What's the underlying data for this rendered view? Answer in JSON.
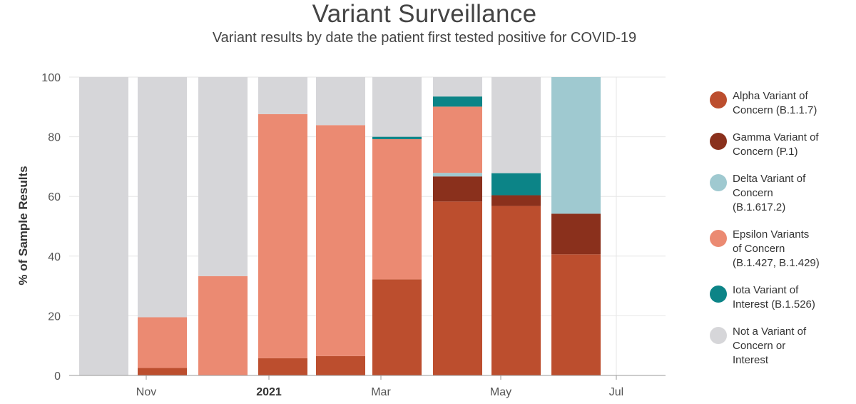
{
  "chart_data": {
    "type": "bar",
    "stacked": true,
    "title": "Variant Surveillance",
    "subtitle": "Variant results by date the patient first tested positive for COVID-19",
    "ylabel": "% of Sample Results",
    "ylim": [
      0,
      100
    ],
    "yticks": [
      "0",
      "20",
      "40",
      "60",
      "80",
      "100"
    ],
    "xticks": [
      "Nov",
      "2021",
      "Mar",
      "May",
      "Jul"
    ],
    "grid": true,
    "legend_position": "right",
    "categories": [
      "Oct 2020",
      "Nov 2020",
      "Dec 2020",
      "Jan 2021",
      "Feb 2021",
      "Mar 2021",
      "Apr 2021",
      "May 2021",
      "Jun 2021"
    ],
    "series": [
      {
        "name": "Alpha Variant of Concern (B.1.1.7)",
        "color": "#BC4E2E",
        "values": [
          0,
          2.5,
          0,
          5.8,
          6.5,
          32.2,
          58.3,
          56.8,
          40.6
        ]
      },
      {
        "name": "Gamma Variant of Concern (P.1)",
        "color": "#8A301C",
        "values": [
          0,
          0,
          0,
          0,
          0,
          0,
          8.4,
          3.6,
          13.6
        ]
      },
      {
        "name": "Delta Variant of Concern (B.1.617.2)",
        "color": "#9FC9D0",
        "values": [
          0,
          0,
          0,
          0,
          0,
          0,
          1.2,
          0,
          45.8
        ]
      },
      {
        "name": "Epsilon Variants of Concern (B.1.427, B.1.429)",
        "color": "#EB8A72",
        "values": [
          0,
          17,
          33.3,
          81.8,
          77.4,
          47,
          22.2,
          0,
          0
        ]
      },
      {
        "name": "Iota Variant of Interest (B.1.526)",
        "color": "#0C8487",
        "values": [
          0,
          0,
          0,
          0,
          0,
          0.8,
          3.4,
          7.4,
          0
        ]
      },
      {
        "name": "Not a Variant of Concern or Interest",
        "color": "#D6D6D9",
        "values": [
          100,
          80.5,
          66.7,
          12.4,
          16.1,
          20,
          6.5,
          32.2,
          0
        ]
      }
    ]
  },
  "legend": [
    {
      "label": "Alpha Variant of\nConcern (B.1.1.7)",
      "color": "#BC4E2E"
    },
    {
      "label": "Gamma Variant of\nConcern (P.1)",
      "color": "#8A301C"
    },
    {
      "label": "Delta Variant of\nConcern\n(B.1.617.2)",
      "color": "#9FC9D0"
    },
    {
      "label": "Epsilon Variants\nof Concern\n(B.1.427, B.1.429)",
      "color": "#EB8A72"
    },
    {
      "label": "Iota Variant of\nInterest (B.1.526)",
      "color": "#0C8487"
    },
    {
      "label": "Not a Variant of\nConcern or\nInterest",
      "color": "#D6D6D9"
    }
  ]
}
